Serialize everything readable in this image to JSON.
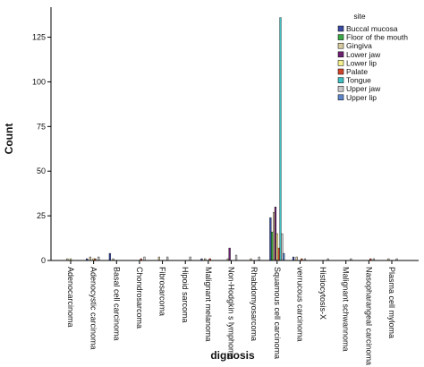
{
  "chart_data": {
    "type": "bar",
    "xlabel": "dignosis",
    "ylabel": "Count",
    "ylim": [
      0,
      140
    ],
    "yticks": [
      0,
      25,
      50,
      75,
      100,
      125
    ],
    "grid": false,
    "legend": {
      "title": "site",
      "placement": "top-right"
    },
    "categories": [
      "Adenocarcinoma",
      "Adenocystic carcinoma",
      "Basal cell carcinoma",
      "Chondrosarcoma",
      "Fibrosarcoma",
      "Hipoid sarcoma",
      "Malignant melanoma",
      "Non-Hodgkin s lymphoma",
      "Rhabdomyosarcoma",
      "Squamous cell carcinoma",
      "verrucous carcinoma",
      "Histiocytosis-X",
      "Malignant schwannoma",
      "Nasopharangeal carcinoma",
      "Plasma cell myloma"
    ],
    "series": [
      {
        "name": "Buccal mucosa",
        "color": "#3b4aa3",
        "values": [
          0,
          1,
          4,
          0,
          0,
          0,
          1,
          0,
          0,
          24,
          2,
          0,
          0,
          0,
          0
        ]
      },
      {
        "name": "Floor of the mouth",
        "color": "#3aa845",
        "values": [
          0,
          0,
          0,
          0,
          0,
          0,
          0,
          0,
          0,
          16,
          0,
          0,
          0,
          0,
          0
        ]
      },
      {
        "name": "Gingiva",
        "color": "#d7c9a0",
        "values": [
          1,
          2,
          1,
          0,
          2,
          0,
          1,
          1,
          1,
          27,
          2,
          0,
          0,
          0,
          1
        ]
      },
      {
        "name": "Lower jaw",
        "color": "#6b2170",
        "values": [
          0,
          0,
          0,
          0,
          0,
          0,
          0,
          7,
          0,
          30,
          0,
          0,
          0,
          0,
          0
        ]
      },
      {
        "name": "Lower lip",
        "color": "#f3ef8c",
        "values": [
          1,
          1,
          0,
          0,
          0,
          0,
          0,
          0,
          0,
          15,
          0,
          0,
          0,
          0,
          0
        ]
      },
      {
        "name": "Palate",
        "color": "#d1452c",
        "values": [
          0,
          1,
          0,
          1,
          0,
          0,
          1,
          0,
          0,
          7,
          1,
          0,
          0,
          1,
          0
        ]
      },
      {
        "name": "Tongue",
        "color": "#3ec1c3",
        "values": [
          0,
          0,
          0,
          0,
          0,
          0,
          0,
          0,
          0,
          136,
          0,
          0,
          0,
          0,
          0
        ]
      },
      {
        "name": "Upper jaw",
        "color": "#c8c8c8",
        "values": [
          0,
          2,
          0,
          2,
          2,
          2,
          0,
          3,
          2,
          15,
          1,
          1,
          1,
          1,
          1
        ]
      },
      {
        "name": "Upper lip",
        "color": "#5d85c9",
        "values": [
          0,
          0,
          0,
          0,
          0,
          0,
          0,
          0,
          0,
          4,
          0,
          0,
          0,
          0,
          0
        ]
      }
    ]
  }
}
